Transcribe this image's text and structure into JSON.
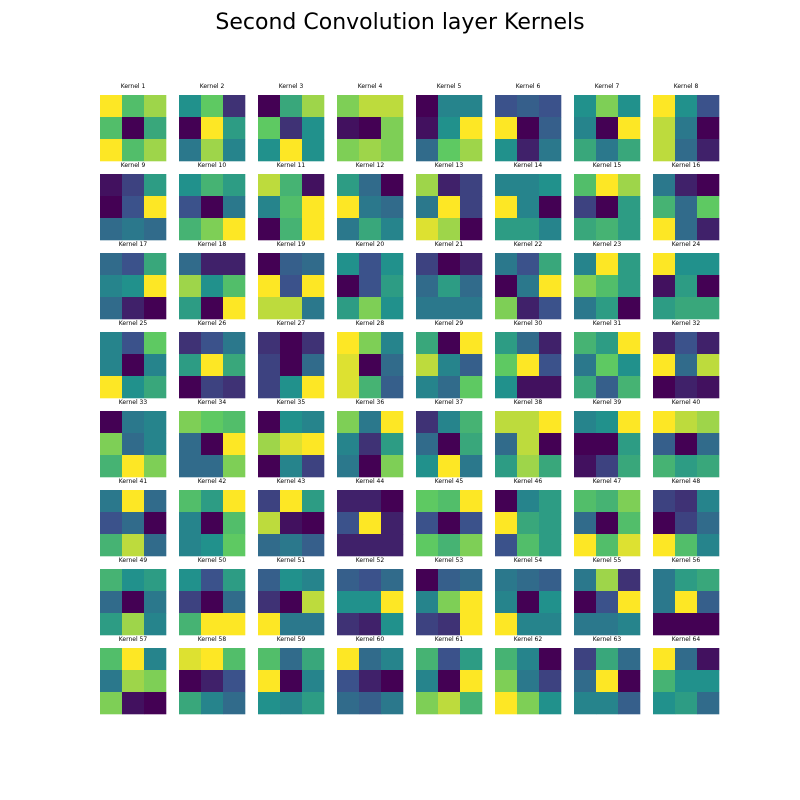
{
  "chart_data": {
    "type": "heatmap",
    "title": "Second Convolution layer Kernels",
    "colormap": "viridis",
    "colormap_stops": [
      "#440154",
      "#3b528b",
      "#21918c",
      "#5ec962",
      "#fde725"
    ],
    "kernels": [
      {
        "label": "Kernel 1",
        "values": [
          [
            1.0,
            0.7,
            0.85
          ],
          [
            0.7,
            0.0,
            0.6
          ],
          [
            1.0,
            0.7,
            0.85
          ]
        ]
      },
      {
        "label": "Kernel 2",
        "values": [
          [
            0.5,
            0.75,
            0.15
          ],
          [
            0.0,
            1.0,
            0.55
          ],
          [
            0.4,
            0.85,
            0.45
          ]
        ]
      },
      {
        "label": "Kernel 3",
        "values": [
          [
            0.0,
            0.6,
            0.85
          ],
          [
            0.75,
            0.15,
            0.5
          ],
          [
            0.5,
            1.0,
            0.5
          ]
        ]
      },
      {
        "label": "Kernel 4",
        "values": [
          [
            0.8,
            0.9,
            0.9
          ],
          [
            0.05,
            0.0,
            0.8
          ],
          [
            0.8,
            0.85,
            0.8
          ]
        ]
      },
      {
        "label": "Kernel 5",
        "values": [
          [
            0.0,
            0.45,
            0.45
          ],
          [
            0.05,
            0.5,
            1.0
          ],
          [
            0.35,
            0.75,
            0.85
          ]
        ]
      },
      {
        "label": "Kernel 6",
        "values": [
          [
            0.25,
            0.3,
            0.25
          ],
          [
            1.0,
            0.0,
            0.3
          ],
          [
            0.5,
            0.1,
            0.4
          ]
        ]
      },
      {
        "label": "Kernel 7",
        "values": [
          [
            0.5,
            0.8,
            0.5
          ],
          [
            0.45,
            0.0,
            1.0
          ],
          [
            0.6,
            0.4,
            0.6
          ]
        ]
      },
      {
        "label": "Kernel 8",
        "values": [
          [
            1.0,
            0.5,
            0.25
          ],
          [
            0.9,
            0.4,
            0.0
          ],
          [
            0.9,
            0.35,
            0.1
          ]
        ]
      },
      {
        "label": "Kernel 9",
        "values": [
          [
            0.05,
            0.2,
            0.55
          ],
          [
            0.0,
            0.25,
            1.0
          ],
          [
            0.35,
            0.4,
            0.35
          ]
        ]
      },
      {
        "label": "Kernel 10",
        "values": [
          [
            0.5,
            0.65,
            0.55
          ],
          [
            0.25,
            0.0,
            0.4
          ],
          [
            0.65,
            0.8,
            1.0
          ]
        ]
      },
      {
        "label": "Kernel 11",
        "values": [
          [
            0.9,
            0.65,
            0.05
          ],
          [
            0.45,
            0.7,
            1.0
          ],
          [
            0.0,
            0.65,
            1.0
          ]
        ]
      },
      {
        "label": "Kernel 12",
        "values": [
          [
            0.55,
            0.35,
            0.0
          ],
          [
            1.0,
            0.4,
            0.35
          ],
          [
            0.4,
            0.6,
            0.45
          ]
        ]
      },
      {
        "label": "Kernel 13",
        "values": [
          [
            0.85,
            0.1,
            0.2
          ],
          [
            0.4,
            1.0,
            0.2
          ],
          [
            0.95,
            0.85,
            0.0
          ]
        ]
      },
      {
        "label": "Kernel 14",
        "values": [
          [
            0.45,
            0.45,
            0.5
          ],
          [
            1.0,
            0.45,
            0.0
          ],
          [
            0.55,
            0.55,
            0.45
          ]
        ]
      },
      {
        "label": "Kernel 15",
        "values": [
          [
            0.7,
            1.0,
            0.85
          ],
          [
            0.2,
            0.0,
            0.55
          ],
          [
            0.6,
            0.65,
            0.55
          ]
        ]
      },
      {
        "label": "Kernel 16",
        "values": [
          [
            0.4,
            0.1,
            0.0
          ],
          [
            0.65,
            0.35,
            0.75
          ],
          [
            1.0,
            0.35,
            0.1
          ]
        ]
      },
      {
        "label": "Kernel 17",
        "values": [
          [
            0.35,
            0.25,
            0.6
          ],
          [
            0.45,
            0.5,
            1.0
          ],
          [
            0.35,
            0.1,
            0.0
          ]
        ]
      },
      {
        "label": "Kernel 18",
        "values": [
          [
            0.35,
            0.1,
            0.1
          ],
          [
            0.85,
            0.5,
            0.7
          ],
          [
            0.55,
            0.0,
            1.0
          ]
        ]
      },
      {
        "label": "Kernel 19",
        "values": [
          [
            0.0,
            0.3,
            0.35
          ],
          [
            1.0,
            0.25,
            1.0
          ],
          [
            0.9,
            0.9,
            0.4
          ]
        ]
      },
      {
        "label": "Kernel 20",
        "values": [
          [
            0.5,
            0.25,
            0.5
          ],
          [
            0.0,
            0.25,
            0.55
          ],
          [
            0.55,
            0.8,
            0.5
          ]
        ]
      },
      {
        "label": "Kernel 21",
        "values": [
          [
            0.2,
            0.0,
            0.1
          ],
          [
            0.35,
            0.55,
            0.35
          ],
          [
            0.4,
            0.4,
            0.4
          ]
        ]
      },
      {
        "label": "Kernel 22",
        "values": [
          [
            0.4,
            0.25,
            0.6
          ],
          [
            0.0,
            0.4,
            1.0
          ],
          [
            0.8,
            0.1,
            0.25
          ]
        ]
      },
      {
        "label": "Kernel 23",
        "values": [
          [
            0.45,
            1.0,
            0.55
          ],
          [
            0.8,
            0.7,
            0.55
          ],
          [
            0.4,
            0.55,
            0.0
          ]
        ]
      },
      {
        "label": "Kernel 24",
        "values": [
          [
            1.0,
            0.5,
            0.5
          ],
          [
            0.05,
            0.55,
            0.0
          ],
          [
            0.55,
            0.6,
            0.6
          ]
        ]
      },
      {
        "label": "Kernel 25",
        "values": [
          [
            0.45,
            0.25,
            0.75
          ],
          [
            0.45,
            0.0,
            0.45
          ],
          [
            1.0,
            0.5,
            0.6
          ]
        ]
      },
      {
        "label": "Kernel 26",
        "values": [
          [
            0.15,
            0.25,
            0.4
          ],
          [
            0.55,
            1.0,
            0.6
          ],
          [
            0.0,
            0.2,
            0.15
          ]
        ]
      },
      {
        "label": "Kernel 27",
        "values": [
          [
            0.15,
            0.0,
            0.15
          ],
          [
            0.2,
            0.0,
            0.35
          ],
          [
            0.2,
            0.5,
            1.0
          ]
        ]
      },
      {
        "label": "Kernel 28",
        "values": [
          [
            1.0,
            0.8,
            0.45
          ],
          [
            0.95,
            0.0,
            0.35
          ],
          [
            0.95,
            0.65,
            0.3
          ]
        ]
      },
      {
        "label": "Kernel 29",
        "values": [
          [
            0.6,
            0.0,
            1.0
          ],
          [
            0.9,
            0.45,
            0.3
          ],
          [
            0.45,
            0.35,
            0.75
          ]
        ]
      },
      {
        "label": "Kernel 30",
        "values": [
          [
            0.55,
            0.35,
            0.1
          ],
          [
            0.75,
            1.0,
            0.25
          ],
          [
            0.5,
            0.05,
            0.05
          ]
        ]
      },
      {
        "label": "Kernel 31",
        "values": [
          [
            0.65,
            0.55,
            1.0
          ],
          [
            0.4,
            0.75,
            0.5
          ],
          [
            0.6,
            0.3,
            0.65
          ]
        ]
      },
      {
        "label": "Kernel 32",
        "values": [
          [
            0.1,
            0.25,
            0.1
          ],
          [
            1.0,
            0.35,
            0.9
          ],
          [
            0.0,
            0.1,
            0.05
          ]
        ]
      },
      {
        "label": "Kernel 33",
        "values": [
          [
            0.0,
            0.4,
            0.45
          ],
          [
            0.8,
            0.35,
            0.45
          ],
          [
            0.65,
            1.0,
            0.8
          ]
        ]
      },
      {
        "label": "Kernel 34",
        "values": [
          [
            0.8,
            0.75,
            0.7
          ],
          [
            0.35,
            0.0,
            1.0
          ],
          [
            0.35,
            0.35,
            0.8
          ]
        ]
      },
      {
        "label": "Kernel 35",
        "values": [
          [
            0.0,
            0.5,
            0.45
          ],
          [
            0.85,
            0.95,
            1.0
          ],
          [
            0.0,
            0.45,
            0.2
          ]
        ]
      },
      {
        "label": "Kernel 36",
        "values": [
          [
            0.8,
            0.4,
            1.0
          ],
          [
            0.45,
            0.15,
            0.55
          ],
          [
            0.4,
            0.0,
            0.8
          ]
        ]
      },
      {
        "label": "Kernel 37",
        "values": [
          [
            0.15,
            0.45,
            0.65
          ],
          [
            0.35,
            0.0,
            0.6
          ],
          [
            0.5,
            1.0,
            0.4
          ]
        ]
      },
      {
        "label": "Kernel 38",
        "values": [
          [
            0.9,
            0.9,
            1.0
          ],
          [
            0.35,
            0.9,
            0.0
          ],
          [
            0.55,
            0.85,
            0.6
          ]
        ]
      },
      {
        "label": "Kernel 39",
        "values": [
          [
            0.45,
            0.5,
            1.0
          ],
          [
            0.0,
            0.0,
            0.55
          ],
          [
            0.05,
            0.2,
            0.6
          ]
        ]
      },
      {
        "label": "Kernel 40",
        "values": [
          [
            1.0,
            0.9,
            0.85
          ],
          [
            0.3,
            0.0,
            0.35
          ],
          [
            0.65,
            0.55,
            0.6
          ]
        ]
      },
      {
        "label": "Kernel 41",
        "values": [
          [
            0.4,
            1.0,
            0.35
          ],
          [
            0.25,
            0.35,
            0.0
          ],
          [
            0.65,
            0.9,
            0.35
          ]
        ]
      },
      {
        "label": "Kernel 42",
        "values": [
          [
            0.7,
            0.55,
            1.0
          ],
          [
            0.45,
            0.0,
            0.7
          ],
          [
            0.45,
            0.5,
            0.75
          ]
        ]
      },
      {
        "label": "Kernel 43",
        "values": [
          [
            0.2,
            1.0,
            0.55
          ],
          [
            0.9,
            0.05,
            0.0
          ],
          [
            0.35,
            0.4,
            0.3
          ]
        ]
      },
      {
        "label": "Kernel 44",
        "values": [
          [
            0.1,
            0.1,
            0.0
          ],
          [
            0.25,
            1.0,
            0.1
          ],
          [
            0.1,
            0.1,
            0.1
          ]
        ]
      },
      {
        "label": "Kernel 45",
        "values": [
          [
            0.75,
            0.7,
            1.0
          ],
          [
            0.25,
            0.0,
            0.25
          ],
          [
            0.75,
            0.65,
            0.8
          ]
        ]
      },
      {
        "label": "Kernel 46",
        "values": [
          [
            0.0,
            0.45,
            0.55
          ],
          [
            1.0,
            0.6,
            0.55
          ],
          [
            0.25,
            0.7,
            0.55
          ]
        ]
      },
      {
        "label": "Kernel 47",
        "values": [
          [
            0.7,
            0.65,
            0.8
          ],
          [
            0.35,
            0.0,
            0.7
          ],
          [
            1.0,
            0.7,
            0.95
          ]
        ]
      },
      {
        "label": "Kernel 48",
        "values": [
          [
            0.2,
            0.15,
            0.45
          ],
          [
            0.0,
            0.2,
            0.35
          ],
          [
            1.0,
            0.7,
            0.45
          ]
        ]
      },
      {
        "label": "Kernel 49",
        "values": [
          [
            0.65,
            0.5,
            0.55
          ],
          [
            0.35,
            0.0,
            0.4
          ],
          [
            0.55,
            0.85,
            0.45
          ]
        ]
      },
      {
        "label": "Kernel 50",
        "values": [
          [
            0.5,
            0.25,
            0.55
          ],
          [
            0.2,
            0.0,
            0.35
          ],
          [
            0.65,
            1.0,
            1.0
          ]
        ]
      },
      {
        "label": "Kernel 51",
        "values": [
          [
            0.3,
            0.5,
            0.45
          ],
          [
            0.15,
            0.0,
            0.9
          ],
          [
            1.0,
            0.4,
            0.4
          ]
        ]
      },
      {
        "label": "Kernel 52",
        "values": [
          [
            0.3,
            0.25,
            0.35
          ],
          [
            0.5,
            0.5,
            1.0
          ],
          [
            0.15,
            0.1,
            0.5
          ]
        ]
      },
      {
        "label": "Kernel 53",
        "values": [
          [
            0.0,
            0.3,
            0.35
          ],
          [
            0.45,
            0.8,
            1.0
          ],
          [
            0.2,
            0.15,
            1.0
          ]
        ]
      },
      {
        "label": "Kernel 54",
        "values": [
          [
            0.4,
            0.35,
            0.3
          ],
          [
            0.45,
            0.0,
            0.5
          ],
          [
            1.0,
            0.45,
            0.45
          ]
        ]
      },
      {
        "label": "Kernel 55",
        "values": [
          [
            0.4,
            0.85,
            0.15
          ],
          [
            0.0,
            0.25,
            1.0
          ],
          [
            0.4,
            0.4,
            0.45
          ]
        ]
      },
      {
        "label": "Kernel 56",
        "values": [
          [
            0.4,
            0.55,
            0.6
          ],
          [
            0.4,
            1.0,
            0.3
          ],
          [
            0.0,
            0.0,
            0.0
          ]
        ]
      },
      {
        "label": "Kernel 57",
        "values": [
          [
            0.7,
            1.0,
            0.45
          ],
          [
            0.4,
            0.85,
            0.8
          ],
          [
            0.8,
            0.05,
            0.0
          ]
        ]
      },
      {
        "label": "Kernel 58",
        "values": [
          [
            0.95,
            1.0,
            0.7
          ],
          [
            0.0,
            0.1,
            0.25
          ],
          [
            0.6,
            0.45,
            0.35
          ]
        ]
      },
      {
        "label": "Kernel 59",
        "values": [
          [
            0.7,
            0.35,
            0.6
          ],
          [
            1.0,
            0.0,
            0.45
          ],
          [
            0.5,
            0.45,
            0.55
          ]
        ]
      },
      {
        "label": "Kernel 60",
        "values": [
          [
            1.0,
            0.35,
            0.45
          ],
          [
            0.25,
            0.1,
            0.0
          ],
          [
            0.35,
            0.3,
            0.4
          ]
        ]
      },
      {
        "label": "Kernel 61",
        "values": [
          [
            0.65,
            0.25,
            0.55
          ],
          [
            0.45,
            0.0,
            1.0
          ],
          [
            0.8,
            0.9,
            0.65
          ]
        ]
      },
      {
        "label": "Kernel 62",
        "values": [
          [
            0.65,
            0.45,
            0.0
          ],
          [
            0.8,
            0.4,
            0.2
          ],
          [
            1.0,
            0.8,
            0.5
          ]
        ]
      },
      {
        "label": "Kernel 63",
        "values": [
          [
            0.2,
            0.6,
            0.35
          ],
          [
            0.35,
            1.0,
            0.0
          ],
          [
            0.45,
            0.45,
            0.3
          ]
        ]
      },
      {
        "label": "Kernel 64",
        "values": [
          [
            1.0,
            0.35,
            0.05
          ],
          [
            0.65,
            0.5,
            0.5
          ],
          [
            0.5,
            0.55,
            0.35
          ]
        ]
      }
    ]
  }
}
